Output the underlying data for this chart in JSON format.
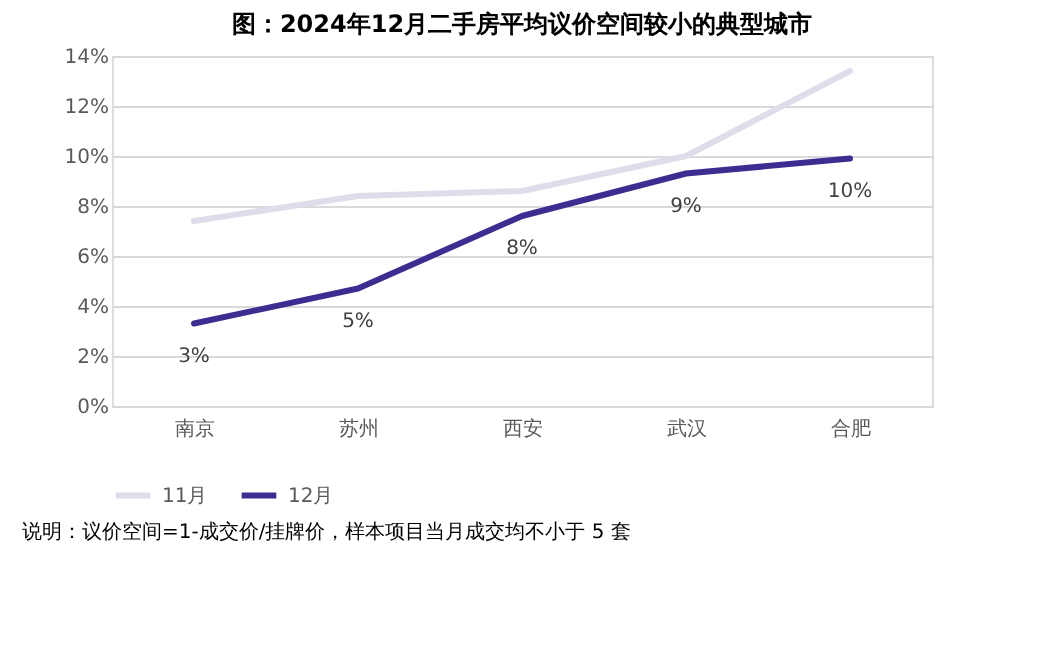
{
  "chart_data": {
    "type": "line",
    "title": "图：2024年12月二手房平均议价空间较小的典型城市",
    "categories": [
      "南京",
      "苏州",
      "西安",
      "武汉",
      "合肥"
    ],
    "series": [
      {
        "name": "11月",
        "color": "#e0dcec",
        "values": [
          7.4,
          8.4,
          8.6,
          10.0,
          13.4
        ]
      },
      {
        "name": "12月",
        "color": "#3c2d91",
        "values": [
          3.3,
          4.7,
          7.6,
          9.3,
          9.9
        ],
        "value_labels": [
          "3%",
          "5%",
          "8%",
          "9%",
          "10%"
        ]
      }
    ],
    "ylim": [
      0,
      14
    ],
    "yticks": [
      {
        "value": 0,
        "label": "0%"
      },
      {
        "value": 2,
        "label": "2%"
      },
      {
        "value": 4,
        "label": "4%"
      },
      {
        "value": 6,
        "label": "6%"
      },
      {
        "value": 8,
        "label": "8%"
      },
      {
        "value": 10,
        "label": "10%"
      },
      {
        "value": 12,
        "label": "12%"
      },
      {
        "value": 14,
        "label": "14%"
      }
    ],
    "grid": "y",
    "legend": "bottom",
    "marker": "none",
    "line_style": "solid",
    "annotations": [
      "说明：议价空间=1-成交价/挂牌价，样本项目当月成交均不小于 5 套"
    ]
  }
}
